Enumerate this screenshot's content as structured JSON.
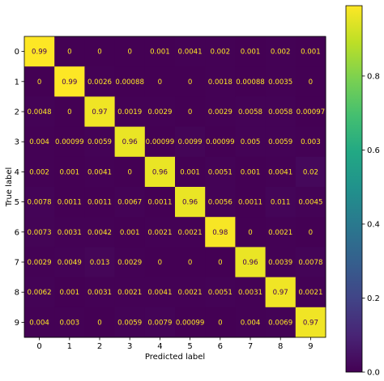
{
  "chart_data": {
    "type": "heatmap",
    "title": "",
    "xlabel": "Predicted label",
    "ylabel": "True label",
    "x_categories": [
      "0",
      "1",
      "2",
      "3",
      "4",
      "5",
      "6",
      "7",
      "8",
      "9"
    ],
    "y_categories": [
      "0",
      "1",
      "2",
      "3",
      "4",
      "5",
      "6",
      "7",
      "8",
      "9"
    ],
    "values": [
      [
        0.99,
        0,
        0,
        0,
        0.001,
        0.0041,
        0.002,
        0.001,
        0.002,
        0.001
      ],
      [
        0,
        0.99,
        0.0026,
        0.00088,
        0,
        0,
        0.0018,
        0.00088,
        0.0035,
        0
      ],
      [
        0.0048,
        0,
        0.97,
        0.0019,
        0.0029,
        0,
        0.0029,
        0.0058,
        0.0058,
        0.00097
      ],
      [
        0.004,
        0.00099,
        0.0059,
        0.96,
        0.00099,
        0.0099,
        0.00099,
        0.005,
        0.0059,
        0.003
      ],
      [
        0.002,
        0.001,
        0.0041,
        0,
        0.96,
        0.001,
        0.0051,
        0.001,
        0.0041,
        0.02
      ],
      [
        0.0078,
        0.0011,
        0.0011,
        0.0067,
        0.0011,
        0.96,
        0.0056,
        0.0011,
        0.011,
        0.0045
      ],
      [
        0.0073,
        0.0031,
        0.0042,
        0.001,
        0.0021,
        0.0021,
        0.98,
        0,
        0.0021,
        0
      ],
      [
        0.0029,
        0.0049,
        0.013,
        0.0029,
        0,
        0,
        0,
        0.96,
        0.0039,
        0.0078
      ],
      [
        0.0062,
        0.001,
        0.0031,
        0.0021,
        0.0041,
        0.0021,
        0.0051,
        0.0031,
        0.97,
        0.0021
      ],
      [
        0.004,
        0.003,
        0,
        0.0059,
        0.0079,
        0.00099,
        0,
        0.004,
        0.0069,
        0.97
      ]
    ],
    "labels": [
      [
        "0.99",
        "0",
        "0",
        "0",
        "0.001",
        "0.0041",
        "0.002",
        "0.001",
        "0.002",
        "0.001"
      ],
      [
        "0",
        "0.99",
        "0.0026",
        "0.00088",
        "0",
        "0",
        "0.0018",
        "0.00088",
        "0.0035",
        "0"
      ],
      [
        "0.0048",
        "0",
        "0.97",
        "0.0019",
        "0.0029",
        "0",
        "0.0029",
        "0.0058",
        "0.0058",
        "0.00097"
      ],
      [
        "0.004",
        "0.00099",
        "0.0059",
        "0.96",
        "0.00099",
        "0.0099",
        "0.00099",
        "0.005",
        "0.0059",
        "0.003"
      ],
      [
        "0.002",
        "0.001",
        "0.0041",
        "0",
        "0.96",
        "0.001",
        "0.0051",
        "0.001",
        "0.0041",
        "0.02"
      ],
      [
        "0.0078",
        "0.0011",
        "0.0011",
        "0.0067",
        "0.0011",
        "0.96",
        "0.0056",
        "0.0011",
        "0.011",
        "0.0045"
      ],
      [
        "0.0073",
        "0.0031",
        "0.0042",
        "0.001",
        "0.0021",
        "0.0021",
        "0.98",
        "0",
        "0.0021",
        "0"
      ],
      [
        "0.0029",
        "0.0049",
        "0.013",
        "0.0029",
        "0",
        "0",
        "0",
        "0.96",
        "0.0039",
        "0.0078"
      ],
      [
        "0.0062",
        "0.001",
        "0.0031",
        "0.0021",
        "0.0041",
        "0.0021",
        "0.0051",
        "0.0031",
        "0.97",
        "0.0021"
      ],
      [
        "0.004",
        "0.003",
        "0",
        "0.0059",
        "0.0079",
        "0.00099",
        "0",
        "0.004",
        "0.0069",
        "0.97"
      ]
    ],
    "colorbar": {
      "range": [
        0.0,
        0.99
      ],
      "ticks": [
        0.0,
        0.2,
        0.4,
        0.6,
        0.8
      ],
      "tick_labels": [
        "0.0",
        "0.2",
        "0.4",
        "0.6",
        "0.8"
      ]
    },
    "colormap": "viridis",
    "text_color_dark_cell": "#fde725",
    "text_color_light_cell": "#440154",
    "grid": false
  }
}
